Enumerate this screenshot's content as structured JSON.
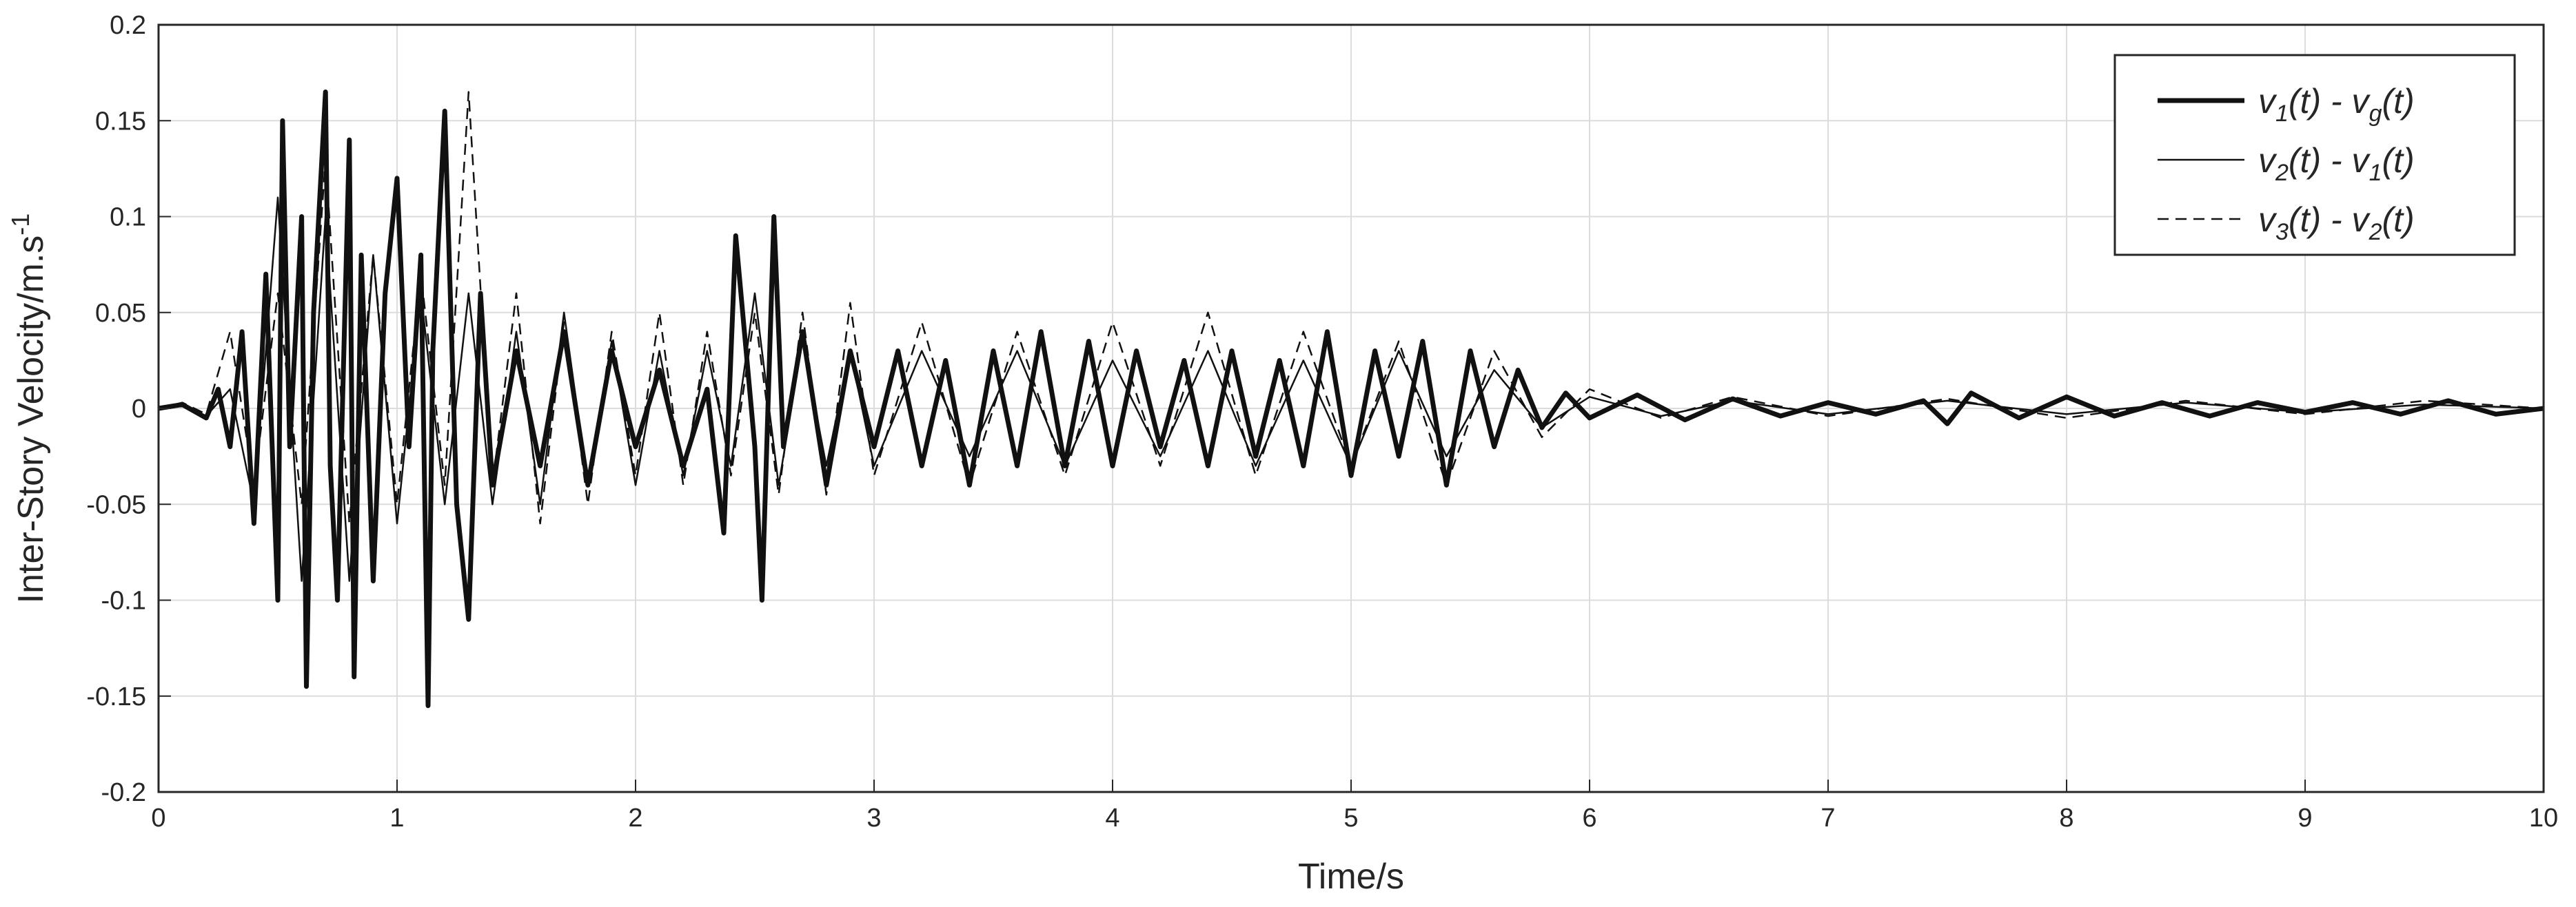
{
  "chart_data": {
    "type": "line",
    "title": "",
    "xlabel": "Time/s",
    "ylabel_main": "Inter-Story Velocity/m.s",
    "ylabel_sup": "-1",
    "xlim": [
      0,
      10
    ],
    "ylim": [
      -0.2,
      0.2
    ],
    "xticks": [
      0,
      1,
      2,
      3,
      4,
      5,
      6,
      7,
      8,
      9,
      10
    ],
    "xtick_labels": [
      "0",
      "1",
      "2",
      "3",
      "4",
      "5",
      "6",
      "7",
      "8",
      "9",
      "10"
    ],
    "yticks": [
      -0.2,
      -0.15,
      -0.1,
      -0.05,
      0,
      0.05,
      0.1,
      0.15,
      0.2
    ],
    "ytick_labels": [
      "-0.2",
      "-0.15",
      "-0.1",
      "-0.05",
      "0",
      "0.05",
      "0.1",
      "0.15",
      "0.2"
    ],
    "grid": true,
    "legend_position": "top-right",
    "series": [
      {
        "name": "v1(t) - vg(t)",
        "legend": [
          [
            "v",
            "1",
            "(t) - v",
            "g",
            "(t)"
          ]
        ],
        "style": "thick-solid",
        "x": [
          0,
          0.1,
          0.2,
          0.25,
          0.3,
          0.35,
          0.4,
          0.45,
          0.5,
          0.52,
          0.55,
          0.6,
          0.62,
          0.65,
          0.7,
          0.72,
          0.75,
          0.8,
          0.82,
          0.85,
          0.9,
          0.95,
          1.0,
          1.05,
          1.1,
          1.13,
          1.15,
          1.2,
          1.25,
          1.3,
          1.35,
          1.4,
          1.5,
          1.6,
          1.7,
          1.8,
          1.9,
          2.0,
          2.1,
          2.2,
          2.3,
          2.37,
          2.42,
          2.5,
          2.53,
          2.58,
          2.62,
          2.7,
          2.8,
          2.9,
          3.0,
          3.1,
          3.2,
          3.3,
          3.4,
          3.5,
          3.6,
          3.7,
          3.8,
          3.9,
          4.0,
          4.1,
          4.2,
          4.3,
          4.4,
          4.5,
          4.6,
          4.7,
          4.8,
          4.9,
          5.0,
          5.1,
          5.2,
          5.3,
          5.4,
          5.5,
          5.6,
          5.7,
          5.8,
          5.9,
          6.0,
          6.2,
          6.4,
          6.6,
          6.8,
          7.0,
          7.2,
          7.4,
          7.5,
          7.6,
          7.8,
          8.0,
          8.2,
          8.4,
          8.6,
          8.8,
          9.0,
          9.2,
          9.4,
          9.6,
          9.8,
          10.0
        ],
        "y": [
          0,
          0.002,
          -0.005,
          0.01,
          -0.02,
          0.04,
          -0.06,
          0.07,
          -0.1,
          0.15,
          -0.02,
          0.1,
          -0.145,
          0.05,
          0.165,
          -0.03,
          -0.1,
          0.14,
          -0.14,
          0.08,
          -0.09,
          0.06,
          0.12,
          -0.02,
          0.08,
          -0.155,
          0.03,
          0.155,
          -0.05,
          -0.11,
          0.06,
          -0.04,
          0.03,
          -0.03,
          0.04,
          -0.04,
          0.03,
          -0.02,
          0.02,
          -0.03,
          0.01,
          -0.065,
          0.09,
          -0.02,
          -0.1,
          0.1,
          -0.02,
          0.04,
          -0.04,
          0.03,
          -0.02,
          0.03,
          -0.03,
          0.025,
          -0.04,
          0.03,
          -0.03,
          0.04,
          -0.03,
          0.035,
          -0.03,
          0.03,
          -0.02,
          0.025,
          -0.03,
          0.03,
          -0.025,
          0.025,
          -0.03,
          0.04,
          -0.035,
          0.03,
          -0.025,
          0.035,
          -0.04,
          0.03,
          -0.02,
          0.02,
          -0.01,
          0.008,
          -0.005,
          0.007,
          -0.006,
          0.005,
          -0.004,
          0.003,
          -0.003,
          0.004,
          -0.008,
          0.008,
          -0.005,
          0.006,
          -0.004,
          0.003,
          -0.004,
          0.003,
          -0.002,
          0.003,
          -0.003,
          0.004,
          -0.003,
          0
        ]
      },
      {
        "name": "v2(t) - v1(t)",
        "legend": [
          [
            "v",
            "2",
            "(t) - v",
            "1",
            "(t)"
          ]
        ],
        "style": "thin-solid",
        "x": [
          0,
          0.1,
          0.2,
          0.3,
          0.4,
          0.5,
          0.6,
          0.7,
          0.8,
          0.9,
          1.0,
          1.1,
          1.2,
          1.3,
          1.4,
          1.5,
          1.6,
          1.7,
          1.8,
          1.9,
          2.0,
          2.1,
          2.2,
          2.3,
          2.4,
          2.5,
          2.6,
          2.7,
          2.8,
          2.9,
          3.0,
          3.2,
          3.4,
          3.6,
          3.8,
          4.0,
          4.2,
          4.4,
          4.6,
          4.8,
          5.0,
          5.2,
          5.4,
          5.6,
          5.8,
          6.0,
          6.3,
          6.6,
          7.0,
          7.5,
          8.0,
          8.5,
          9.0,
          9.5,
          10.0
        ],
        "y": [
          0,
          0.002,
          -0.004,
          0.01,
          -0.05,
          0.11,
          -0.09,
          0.1,
          -0.09,
          0.08,
          -0.06,
          0.06,
          -0.05,
          0.06,
          -0.05,
          0.04,
          -0.05,
          0.05,
          -0.04,
          0.035,
          -0.04,
          0.03,
          -0.035,
          0.03,
          -0.03,
          0.06,
          -0.04,
          0.035,
          -0.03,
          0.03,
          -0.03,
          0.03,
          -0.025,
          0.03,
          -0.03,
          0.025,
          -0.025,
          0.03,
          -0.03,
          0.025,
          -0.03,
          0.03,
          -0.025,
          0.02,
          -0.01,
          0.006,
          -0.004,
          0.004,
          -0.003,
          0.004,
          -0.003,
          0.003,
          -0.002,
          0.002,
          0
        ]
      },
      {
        "name": "v3(t) - v2(t)",
        "legend": [
          [
            "v",
            "3",
            "(t) - v",
            "2",
            "(t)"
          ]
        ],
        "style": "dashed",
        "x": [
          0,
          0.1,
          0.2,
          0.3,
          0.4,
          0.5,
          0.6,
          0.7,
          0.8,
          0.9,
          1.0,
          1.1,
          1.2,
          1.3,
          1.4,
          1.5,
          1.6,
          1.7,
          1.8,
          1.9,
          2.0,
          2.1,
          2.2,
          2.3,
          2.4,
          2.5,
          2.6,
          2.7,
          2.8,
          2.9,
          3.0,
          3.2,
          3.4,
          3.6,
          3.8,
          4.0,
          4.2,
          4.4,
          4.6,
          4.8,
          5.0,
          5.2,
          5.4,
          5.6,
          5.8,
          6.0,
          6.3,
          6.6,
          7.0,
          7.5,
          8.0,
          8.5,
          9.0,
          9.5,
          10.0
        ],
        "y": [
          0,
          0.003,
          -0.003,
          0.04,
          -0.04,
          0.06,
          -0.05,
          0.13,
          -0.06,
          0.08,
          -0.05,
          0.07,
          -0.04,
          0.165,
          -0.04,
          0.06,
          -0.06,
          0.045,
          -0.05,
          0.04,
          -0.035,
          0.05,
          -0.04,
          0.04,
          -0.035,
          0.05,
          -0.045,
          0.05,
          -0.045,
          0.055,
          -0.035,
          0.045,
          -0.04,
          0.04,
          -0.035,
          0.045,
          -0.03,
          0.05,
          -0.035,
          0.04,
          -0.03,
          0.035,
          -0.04,
          0.03,
          -0.015,
          0.01,
          -0.005,
          0.006,
          -0.004,
          0.005,
          -0.005,
          0.004,
          -0.003,
          0.004,
          0
        ]
      }
    ]
  }
}
